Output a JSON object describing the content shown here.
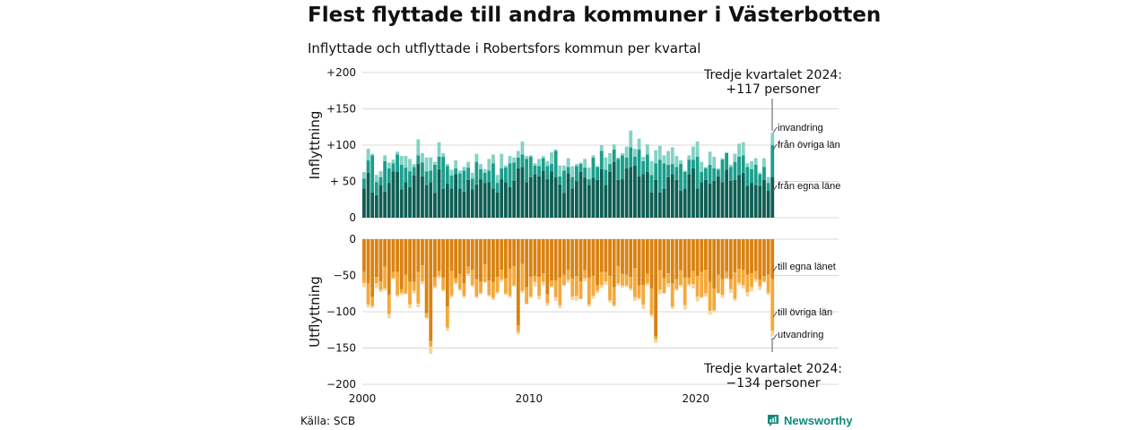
{
  "title": "Flest flyttade till andra kommuner i Västerbotten",
  "subtitle": "Inflyttade och utflyttade i Robertsfors kommun per kvartal",
  "source": "Källa: SCB",
  "brand": "Newsworthy",
  "colors": {
    "in_egna": "#0e5e53",
    "in_ovriga": "#1a9e8b",
    "in_invandring": "#84d2c6",
    "ut_egna": "#d98212",
    "ut_ovriga": "#f3a93a",
    "ut_utvandring": "#f8d5a0",
    "grid": "#d9d9d9",
    "brand": "#0f8a7d"
  },
  "chart_data": [
    {
      "type": "bar",
      "stacked": true,
      "ylabel": "Inflyttning",
      "ylim": [
        0,
        200
      ],
      "yticks": [
        "0",
        "+ 50",
        "+100",
        "+150",
        "+200"
      ],
      "grid": true,
      "legend_placement": "right, labels at last bar",
      "annotation": [
        "Tredje kvartalet 2024:",
        "+117 personer"
      ],
      "x": {
        "start": "2000 Q1",
        "end": "2024 Q3",
        "period": "quarter",
        "ticks": [
          "2000",
          "2010",
          "2020"
        ]
      },
      "series": [
        {
          "name": "från egna läne",
          "values": [
            40,
            62,
            35,
            31,
            45,
            36,
            48,
            64,
            63,
            39,
            49,
            42,
            58,
            74,
            57,
            45,
            49,
            34,
            67,
            40,
            47,
            40,
            60,
            40,
            36,
            52,
            39,
            46,
            53,
            48,
            49,
            40,
            35,
            53,
            49,
            42,
            51,
            68,
            70,
            49,
            56,
            60,
            57,
            65,
            53,
            64,
            56,
            46,
            34,
            61,
            40,
            50,
            63,
            55,
            45,
            55,
            52,
            67,
            45,
            63,
            77,
            52,
            53,
            68,
            70,
            72,
            57,
            60,
            63,
            35,
            52,
            35,
            40,
            56,
            60,
            52,
            37,
            40,
            60,
            68,
            40,
            49,
            52,
            47,
            51,
            57,
            49,
            66,
            51,
            52,
            59,
            62,
            44,
            48,
            45,
            44,
            52,
            37,
            56
          ]
        },
        {
          "name": "från övriga län",
          "values": [
            14,
            17,
            51,
            18,
            11,
            42,
            20,
            11,
            24,
            34,
            20,
            22,
            12,
            12,
            19,
            19,
            16,
            39,
            17,
            44,
            24,
            18,
            8,
            21,
            29,
            17,
            15,
            31,
            14,
            14,
            16,
            35,
            13,
            15,
            20,
            33,
            25,
            15,
            17,
            32,
            28,
            12,
            14,
            17,
            18,
            10,
            36,
            11,
            31,
            9,
            16,
            21,
            11,
            14,
            8,
            28,
            18,
            25,
            21,
            11,
            17,
            29,
            33,
            15,
            27,
            12,
            37,
            18,
            24,
            24,
            23,
            45,
            35,
            17,
            14,
            18,
            37,
            23,
            20,
            12,
            44,
            14,
            16,
            26,
            17,
            9,
            31,
            23,
            19,
            25,
            25,
            24,
            26,
            19,
            28,
            16,
            18,
            11,
            44
          ]
        },
        {
          "name": "invandring",
          "values": [
            9,
            16,
            2,
            10,
            8,
            8,
            8,
            5,
            4,
            12,
            16,
            17,
            4,
            22,
            13,
            19,
            18,
            4,
            20,
            5,
            3,
            8,
            11,
            4,
            5,
            8,
            8,
            11,
            7,
            5,
            16,
            12,
            11,
            20,
            3,
            10,
            7,
            9,
            18,
            4,
            2,
            3,
            10,
            3,
            7,
            16,
            2,
            15,
            7,
            12,
            15,
            3,
            2,
            12,
            16,
            3,
            1,
            8,
            17,
            15,
            7,
            2,
            3,
            15,
            23,
            11,
            15,
            6,
            14,
            19,
            18,
            19,
            11,
            19,
            23,
            15,
            5,
            2,
            6,
            18,
            21,
            14,
            2,
            18,
            16,
            2,
            2,
            1,
            3,
            11,
            18,
            18,
            5,
            11,
            9,
            2,
            12,
            8,
            17
          ]
        }
      ]
    },
    {
      "type": "bar",
      "stacked": true,
      "ylabel": "Utflyttning",
      "ylim": [
        -200,
        0
      ],
      "yticks": [
        "0",
        "−50",
        "−100",
        "−150",
        "−200"
      ],
      "grid": true,
      "legend_placement": "right, labels at last bar",
      "annotation": [
        "Tredje kvartalet 2024:",
        "−134 personer"
      ],
      "x": {
        "start": "2000 Q1",
        "end": "2024 Q3",
        "period": "quarter",
        "ticks": [
          "2000",
          "2010",
          "2020"
        ]
      },
      "series": [
        {
          "name": "till egna länet",
          "values": [
            -45,
            -61,
            -79,
            -52,
            -58,
            -38,
            -77,
            -45,
            -45,
            -69,
            -49,
            -59,
            -59,
            -45,
            -36,
            -102,
            -140,
            -53,
            -44,
            -53,
            -93,
            -44,
            -54,
            -48,
            -61,
            -38,
            -42,
            -55,
            -58,
            -35,
            -57,
            -59,
            -52,
            -42,
            -54,
            -41,
            -37,
            -119,
            -34,
            -66,
            -52,
            -50,
            -52,
            -47,
            -76,
            -57,
            -57,
            -53,
            -49,
            -42,
            -54,
            -51,
            -58,
            -43,
            -53,
            -50,
            -63,
            -45,
            -45,
            -50,
            -66,
            -37,
            -48,
            -49,
            -52,
            -40,
            -64,
            -63,
            -48,
            -68,
            -134,
            -43,
            -54,
            -47,
            -61,
            -55,
            -43,
            -53,
            -53,
            -44,
            -51,
            -45,
            -42,
            -59,
            -68,
            -49,
            -55,
            -45,
            -55,
            -46,
            -41,
            -42,
            -49,
            -47,
            -44,
            -56,
            -51,
            -49,
            -55
          ]
        },
        {
          "name": "till övriga län",
          "values": [
            -15,
            -29,
            -13,
            -9,
            -12,
            -30,
            -26,
            -9,
            -32,
            -5,
            -26,
            -31,
            -12,
            -44,
            -22,
            -6,
            -8,
            -12,
            -7,
            -17,
            -29,
            -34,
            -6,
            -21,
            -17,
            -10,
            -21,
            -24,
            -16,
            -24,
            -20,
            -22,
            -21,
            -14,
            -21,
            -37,
            -27,
            -9,
            -37,
            -23,
            -27,
            -9,
            -26,
            -12,
            -12,
            -8,
            -23,
            -38,
            -14,
            -14,
            -25,
            -27,
            -24,
            -11,
            -37,
            -28,
            -8,
            -18,
            -13,
            -34,
            -25,
            -24,
            -16,
            -15,
            -16,
            -40,
            -17,
            -27,
            -13,
            -36,
            -4,
            -27,
            -20,
            -14,
            -32,
            -14,
            -20,
            -38,
            -9,
            -18,
            -28,
            -35,
            -33,
            -40,
            -30,
            -25,
            -22,
            -9,
            -14,
            -36,
            -19,
            -21,
            -24,
            -19,
            -11,
            -9,
            -7,
            -25,
            -71
          ]
        },
        {
          "name": "utvandring",
          "values": [
            -6,
            -4,
            -3,
            -7,
            -3,
            -3,
            -6,
            -1,
            -2,
            -3,
            -1,
            -5,
            -4,
            -5,
            -4,
            -1,
            -10,
            -3,
            -3,
            -2,
            -4,
            -3,
            -2,
            -2,
            -3,
            -1,
            -3,
            -2,
            -2,
            -1,
            -2,
            -3,
            -2,
            -3,
            -2,
            -3,
            -1,
            -3,
            -3,
            -1,
            -2,
            -6,
            -5,
            -5,
            -4,
            -1,
            -5,
            -4,
            -1,
            -4,
            -5,
            -7,
            -1,
            -4,
            -3,
            -4,
            -3,
            -4,
            -5,
            -3,
            -2,
            -3,
            -3,
            -2,
            -3,
            -5,
            -2,
            -6,
            -3,
            -3,
            -5,
            -6,
            -1,
            -5,
            -3,
            -2,
            -2,
            -6,
            -3,
            -6,
            -7,
            -1,
            -4,
            -5,
            -3,
            -1,
            -4,
            -1,
            -5,
            -3,
            -3,
            -5,
            -6,
            -6,
            -4,
            -5,
            -2,
            -3,
            -8
          ]
        }
      ]
    }
  ]
}
